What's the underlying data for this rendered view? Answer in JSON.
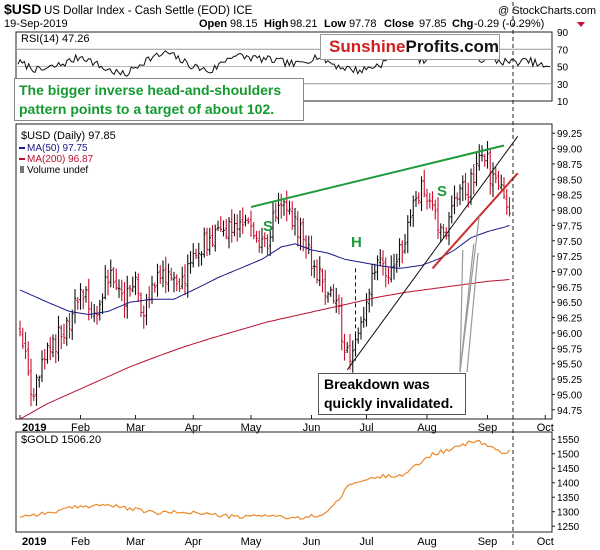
{
  "header": {
    "symbol": "$USD",
    "name": "US Dollar Index - Cash Settle (EOD) ICE",
    "watermark": "@ StockCharts.com",
    "date": "19-Sep-2019",
    "open_label": "Open",
    "open": "98.15",
    "high_label": "High",
    "high": "98.21",
    "low_label": "Low",
    "low": "97.78",
    "close_label": "Close",
    "close": "97.85",
    "chg_label": "Chg",
    "chg": "-0.29 (-0.29%)"
  },
  "logo": {
    "part1": "Sunshine",
    "part2": "Profits.com"
  },
  "annotations": {
    "green_text_line1": "The bigger inverse head-and-shoulders",
    "green_text_line2": "pattern points to a target of about 102.",
    "breakdown_line1": "Breakdown was",
    "breakdown_line2": "quickly invalidated.",
    "s_left": "S",
    "h": "H",
    "s_right": "S"
  },
  "colors": {
    "price_up": "#111111",
    "price_down": "#c8102e",
    "ma50": "#1a1a8c",
    "ma200": "#b8102e",
    "green_line": "#1e9a3a",
    "red_trend": "#cc2d2d",
    "gold_line": "#e98a2c",
    "green_text": "#159a2f"
  },
  "chart_data": [
    {
      "type": "line",
      "panel": "rsi",
      "legend": "RSI(14) 47.26",
      "yticks": [
        90,
        70,
        50,
        30,
        10
      ],
      "ylim": [
        10,
        90
      ],
      "x": [
        0,
        10,
        20,
        30,
        40,
        50,
        60,
        70,
        80,
        90,
        100,
        110,
        120,
        130,
        140,
        150,
        160,
        170,
        180,
        190,
        200,
        210,
        220,
        230,
        240,
        249
      ],
      "values": [
        55,
        45,
        52,
        62,
        48,
        40,
        58,
        66,
        52,
        44,
        63,
        60,
        57,
        52,
        62,
        50,
        45,
        53,
        68,
        56,
        70,
        62,
        58,
        55,
        56,
        47
      ]
    },
    {
      "type": "ohlc",
      "panel": "price",
      "title": "$USD (Daily) 97.85",
      "legend": [
        "$USD (Daily) 97.85",
        "MA(50) 97.75",
        "MA(200) 96.87",
        "Volume undef"
      ],
      "ylim": [
        94.6,
        99.4
      ],
      "yticks": [
        99.25,
        99.0,
        98.75,
        98.5,
        98.25,
        98.0,
        97.75,
        97.5,
        97.25,
        97.0,
        96.75,
        96.5,
        96.25,
        96.0,
        95.75,
        95.5,
        95.25,
        95.0,
        94.75
      ],
      "xticks": [
        {
          "label": "2019",
          "x": 0
        },
        {
          "label": "Feb",
          "x": 22
        },
        {
          "label": "Mar",
          "x": 42
        },
        {
          "label": "Apr",
          "x": 63
        },
        {
          "label": "May",
          "x": 84
        },
        {
          "label": "Jun",
          "x": 106
        },
        {
          "label": "Jul",
          "x": 126
        },
        {
          "label": "Aug",
          "x": 148
        },
        {
          "label": "Sep",
          "x": 170
        },
        {
          "label": "Oct",
          "x": 191
        }
      ],
      "anchors_x": [
        0,
        3,
        5,
        8,
        12,
        18,
        22,
        28,
        32,
        38,
        42,
        45,
        50,
        53,
        58,
        63,
        68,
        74,
        80,
        85,
        90,
        95,
        101,
        103,
        106,
        110,
        113,
        116,
        118,
        120,
        124,
        126,
        130,
        134,
        138,
        142,
        146,
        150,
        152,
        156,
        160,
        163,
        166,
        169,
        171,
        174,
        176,
        178
      ],
      "anchors_y": [
        96.1,
        95.3,
        94.95,
        95.45,
        95.8,
        96.2,
        96.65,
        96.3,
        96.9,
        96.6,
        96.75,
        96.35,
        97.0,
        96.9,
        96.7,
        97.2,
        97.5,
        97.6,
        97.9,
        97.6,
        97.5,
        98.2,
        97.7,
        97.6,
        97.2,
        96.8,
        96.6,
        96.3,
        95.7,
        95.55,
        96.05,
        96.5,
        97.1,
        97.0,
        97.3,
        97.9,
        98.3,
        98.1,
        97.7,
        97.75,
        98.4,
        98.3,
        98.7,
        98.95,
        98.55,
        98.45,
        98.1,
        97.85
      ],
      "ma50_x": [
        0,
        10,
        18,
        25,
        32,
        40,
        48,
        56,
        64,
        72,
        80,
        88,
        95,
        100,
        106,
        112,
        118,
        124,
        130,
        138,
        146,
        152,
        158,
        164,
        170,
        176,
        178
      ],
      "ma50": [
        96.7,
        96.5,
        96.35,
        96.3,
        96.35,
        96.5,
        96.55,
        96.55,
        96.72,
        96.9,
        97.05,
        97.2,
        97.4,
        97.45,
        97.35,
        97.3,
        97.2,
        97.15,
        97.1,
        97.05,
        97.1,
        97.2,
        97.35,
        97.55,
        97.65,
        97.72,
        97.75
      ],
      "ma200_x": [
        0,
        10,
        20,
        30,
        40,
        50,
        60,
        70,
        80,
        90,
        100,
        110,
        120,
        130,
        140,
        150,
        160,
        170,
        178
      ],
      "ma200": [
        94.6,
        94.85,
        95.05,
        95.25,
        95.45,
        95.62,
        95.78,
        95.92,
        96.05,
        96.18,
        96.28,
        96.38,
        96.48,
        96.58,
        96.66,
        96.72,
        96.78,
        96.84,
        96.87
      ],
      "lines": [
        {
          "name": "neckline",
          "color": "green",
          "x": [
            84,
            176
          ],
          "y": [
            98.05,
            99.05
          ]
        },
        {
          "name": "rising support",
          "color": "black",
          "x": [
            119,
            181
          ],
          "y": [
            95.4,
            99.2
          ]
        },
        {
          "name": "red trendline",
          "color": "red",
          "x": [
            150,
            181
          ],
          "y": [
            97.05,
            98.6
          ]
        },
        {
          "name": "head dashed",
          "color": "black-dashed",
          "x": [
            122,
            122
          ],
          "y": [
            97.05,
            95.55
          ]
        }
      ]
    },
    {
      "type": "line",
      "panel": "gold",
      "legend": "$GOLD 1506.20",
      "ylim": [
        1230,
        1575
      ],
      "yticks": [
        1550,
        1500,
        1450,
        1400,
        1350,
        1300,
        1250
      ],
      "x": [
        0,
        10,
        20,
        30,
        40,
        50,
        60,
        70,
        80,
        90,
        100,
        110,
        115,
        120,
        126,
        130,
        140,
        150,
        155,
        160,
        165,
        170,
        175,
        178
      ],
      "values": [
        1285,
        1295,
        1315,
        1325,
        1310,
        1295,
        1300,
        1290,
        1280,
        1290,
        1275,
        1290,
        1330,
        1395,
        1410,
        1420,
        1430,
        1500,
        1510,
        1525,
        1545,
        1530,
        1505,
        1506
      ]
    }
  ]
}
